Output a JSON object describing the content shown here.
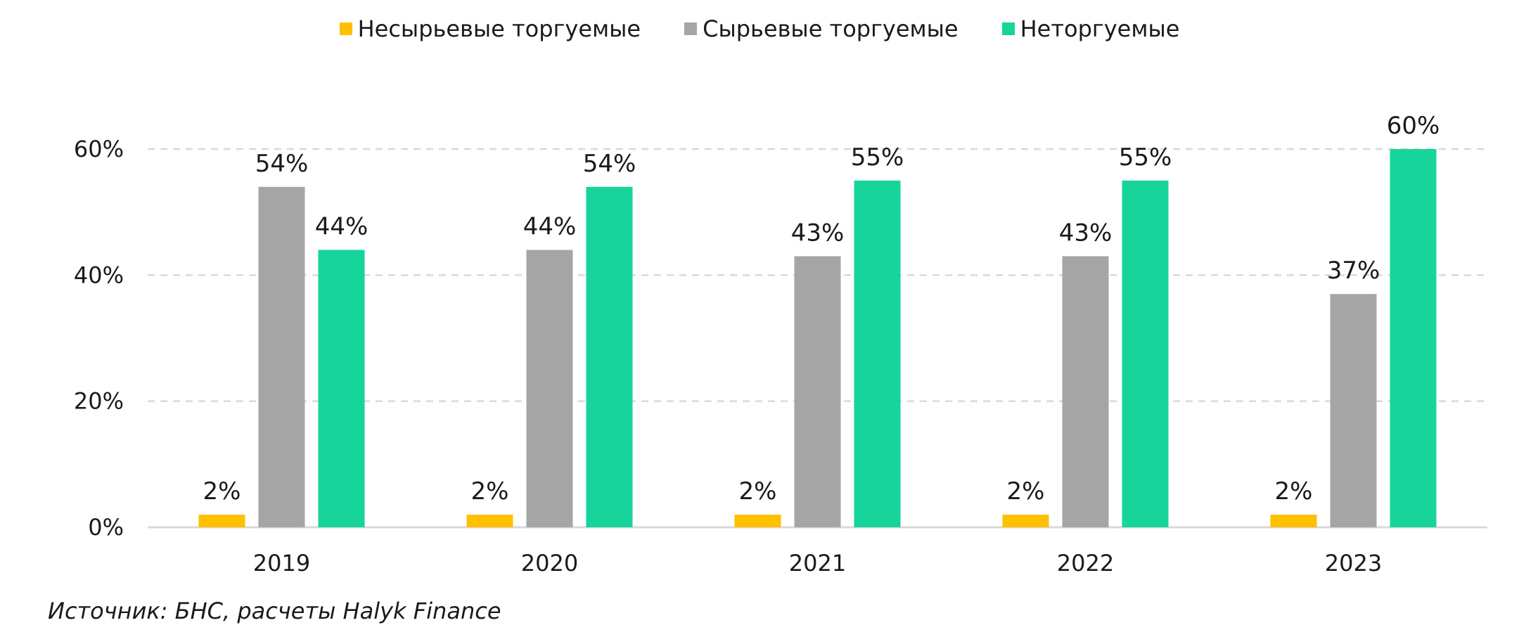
{
  "chart_data": {
    "type": "bar",
    "categories": [
      "2019",
      "2020",
      "2021",
      "2022",
      "2023"
    ],
    "series": [
      {
        "name": "Несырьевые торгуемые",
        "color": "#FFC000",
        "values": [
          2,
          2,
          2,
          2,
          2
        ],
        "labels": [
          "2%",
          "2%",
          "2%",
          "2%",
          "2%"
        ]
      },
      {
        "name": "Сырьевые торгуемые",
        "color": "#A5A5A5",
        "values": [
          54,
          44,
          43,
          43,
          37
        ],
        "labels": [
          "54%",
          "44%",
          "43%",
          "43%",
          "37%"
        ]
      },
      {
        "name": "Неторгуемые",
        "color": "#17D49B",
        "values": [
          44,
          54,
          55,
          55,
          60
        ],
        "labels": [
          "44%",
          "54%",
          "55%",
          "55%",
          "60%"
        ]
      }
    ],
    "yticks": [
      "0%",
      "20%",
      "40%",
      "60%"
    ],
    "ylim": [
      0,
      60
    ],
    "grid": true,
    "legend_position": "top"
  },
  "source": "Источник: БНС, расчеты Halyk Finance"
}
